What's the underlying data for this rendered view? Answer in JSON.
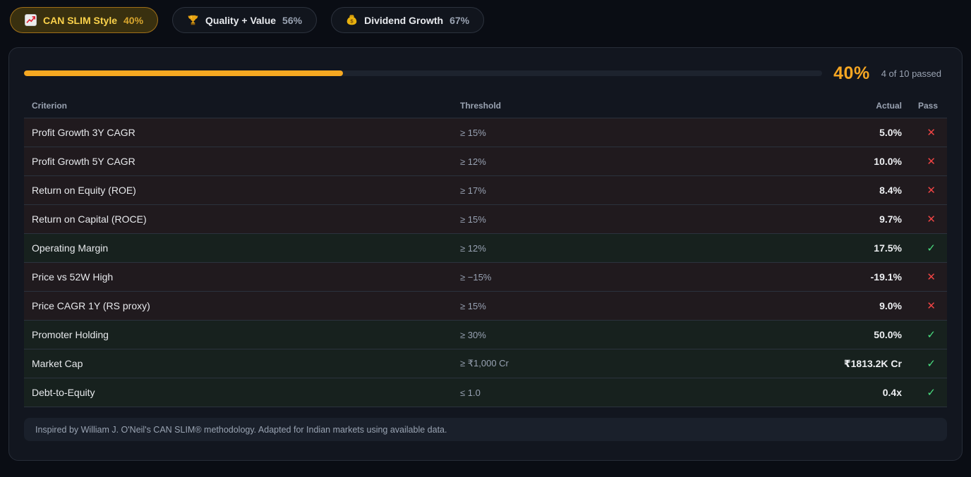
{
  "tabs": [
    {
      "label": "CAN SLIM Style",
      "score": "40%",
      "icon": "chart-increasing",
      "active": true
    },
    {
      "label": "Quality + Value",
      "score": "56%",
      "icon": "trophy",
      "active": false
    },
    {
      "label": "Dividend Growth",
      "score": "67%",
      "icon": "money-bag",
      "active": false
    }
  ],
  "summary": {
    "percent": "40%",
    "passed_text": "4 of 10 passed",
    "progress_percent": 40
  },
  "table": {
    "headers": {
      "criterion": "Criterion",
      "threshold": "Threshold",
      "actual": "Actual",
      "pass": "Pass"
    },
    "pass_icon": "✓",
    "fail_icon": "✕",
    "rows": [
      {
        "criterion": "Profit Growth 3Y CAGR",
        "threshold": "≥ 15%",
        "actual": "5.0%",
        "pass": false
      },
      {
        "criterion": "Profit Growth 5Y CAGR",
        "threshold": "≥ 12%",
        "actual": "10.0%",
        "pass": false
      },
      {
        "criterion": "Return on Equity (ROE)",
        "threshold": "≥ 17%",
        "actual": "8.4%",
        "pass": false
      },
      {
        "criterion": "Return on Capital (ROCE)",
        "threshold": "≥ 15%",
        "actual": "9.7%",
        "pass": false
      },
      {
        "criterion": "Operating Margin",
        "threshold": "≥ 12%",
        "actual": "17.5%",
        "pass": true
      },
      {
        "criterion": "Price vs 52W High",
        "threshold": "≥ −15%",
        "actual": "-19.1%",
        "pass": false
      },
      {
        "criterion": "Price CAGR 1Y (RS proxy)",
        "threshold": "≥ 15%",
        "actual": "9.0%",
        "pass": false
      },
      {
        "criterion": "Promoter Holding",
        "threshold": "≥ 30%",
        "actual": "50.0%",
        "pass": true
      },
      {
        "criterion": "Market Cap",
        "threshold": "≥ ₹1,000 Cr",
        "actual": "₹1813.2K Cr",
        "pass": true
      },
      {
        "criterion": "Debt-to-Equity",
        "threshold": "≤ 1.0",
        "actual": "0.4x",
        "pass": true
      }
    ]
  },
  "footer": {
    "note": "Inspired by William J. O'Neil's CAN SLIM® methodology. Adapted for Indian markets using available data."
  },
  "colors": {
    "accent_orange": "#f5a623",
    "pass_green": "#4ade80",
    "fail_red": "#ef4444",
    "panel_bg": "#12161f",
    "page_bg": "#0a0d14"
  }
}
